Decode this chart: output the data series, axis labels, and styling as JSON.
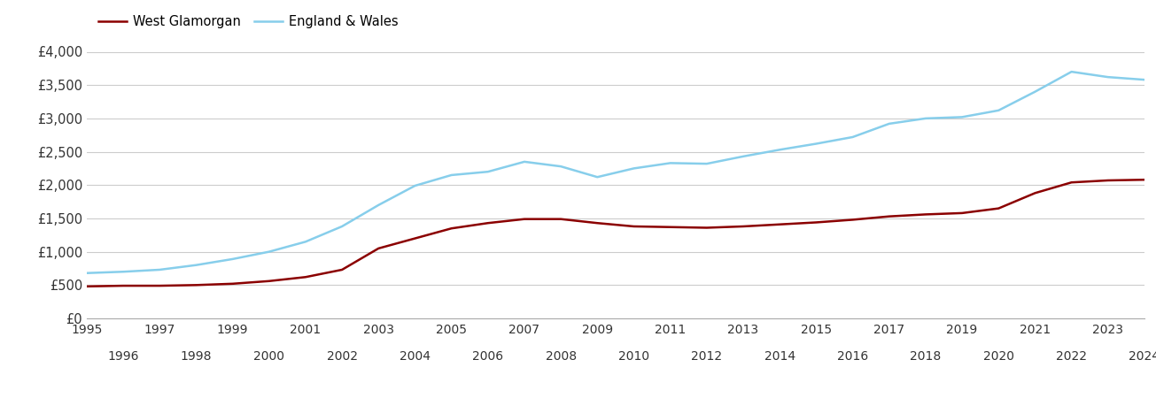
{
  "years": [
    1995,
    1996,
    1997,
    1998,
    1999,
    2000,
    2001,
    2002,
    2003,
    2004,
    2005,
    2006,
    2007,
    2008,
    2009,
    2010,
    2011,
    2012,
    2013,
    2014,
    2015,
    2016,
    2017,
    2018,
    2019,
    2020,
    2021,
    2022,
    2023,
    2024
  ],
  "west_glamorgan": [
    480,
    490,
    490,
    500,
    520,
    560,
    620,
    730,
    1050,
    1200,
    1350,
    1430,
    1490,
    1490,
    1430,
    1380,
    1370,
    1360,
    1380,
    1410,
    1440,
    1480,
    1530,
    1560,
    1580,
    1650,
    1880,
    2040,
    2070,
    2080
  ],
  "england_wales": [
    680,
    700,
    730,
    800,
    890,
    1000,
    1150,
    1380,
    1700,
    1990,
    2150,
    2200,
    2350,
    2280,
    2120,
    2250,
    2330,
    2320,
    2430,
    2530,
    2620,
    2720,
    2920,
    3000,
    3020,
    3120,
    3400,
    3700,
    3620,
    3580
  ],
  "west_glamorgan_color": "#8B0000",
  "england_wales_color": "#87CEEB",
  "west_glamorgan_label": "West Glamorgan",
  "england_wales_label": "England & Wales",
  "ylim": [
    0,
    4000
  ],
  "yticks": [
    0,
    500,
    1000,
    1500,
    2000,
    2500,
    3000,
    3500,
    4000
  ],
  "ytick_labels": [
    "£0",
    "£500",
    "£1,000",
    "£1,500",
    "£2,000",
    "£2,500",
    "£3,000",
    "£3,500",
    "£4,000"
  ],
  "line_width": 1.8,
  "background_color": "#ffffff",
  "grid_color": "#cccccc",
  "odd_years": [
    1995,
    1997,
    1999,
    2001,
    2003,
    2005,
    2007,
    2009,
    2011,
    2013,
    2015,
    2017,
    2019,
    2021,
    2023
  ],
  "even_years": [
    1996,
    1998,
    2000,
    2002,
    2004,
    2006,
    2008,
    2010,
    2012,
    2014,
    2016,
    2018,
    2020,
    2022,
    2024
  ]
}
